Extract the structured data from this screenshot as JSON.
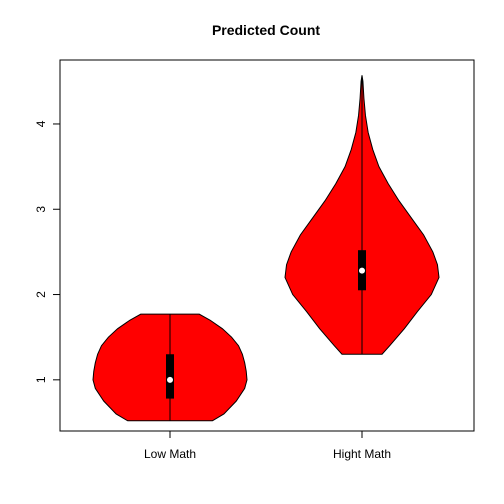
{
  "chart_data": {
    "type": "violin",
    "title": "Predicted Count",
    "xlabel": "",
    "ylabel": "",
    "categories": [
      "Low Math",
      "Hight Math"
    ],
    "ylim": [
      0.4,
      4.75
    ],
    "yticks": [
      1,
      2,
      3,
      4
    ],
    "fill_color": "#ff0000",
    "violins": [
      {
        "category": "Low Math",
        "min": 0.52,
        "q1": 0.78,
        "median": 1.0,
        "q3": 1.3,
        "max": 1.77,
        "density": [
          [
            0.52,
            0.55
          ],
          [
            0.6,
            0.7
          ],
          [
            0.75,
            0.86
          ],
          [
            0.9,
            0.97
          ],
          [
            1.0,
            1.0
          ],
          [
            1.1,
            0.99
          ],
          [
            1.2,
            0.97
          ],
          [
            1.3,
            0.94
          ],
          [
            1.4,
            0.89
          ],
          [
            1.5,
            0.8
          ],
          [
            1.6,
            0.68
          ],
          [
            1.7,
            0.52
          ],
          [
            1.77,
            0.38
          ]
        ]
      },
      {
        "category": "Hight Math",
        "min": 1.3,
        "q1": 2.05,
        "median": 2.28,
        "q3": 2.52,
        "max": 4.57,
        "density": [
          [
            1.3,
            0.26
          ],
          [
            1.4,
            0.36
          ],
          [
            1.6,
            0.55
          ],
          [
            1.8,
            0.72
          ],
          [
            2.0,
            0.9
          ],
          [
            2.2,
            1.0
          ],
          [
            2.35,
            0.98
          ],
          [
            2.5,
            0.92
          ],
          [
            2.7,
            0.8
          ],
          [
            2.9,
            0.64
          ],
          [
            3.1,
            0.48
          ],
          [
            3.3,
            0.34
          ],
          [
            3.5,
            0.22
          ],
          [
            3.7,
            0.14
          ],
          [
            3.9,
            0.08
          ],
          [
            4.1,
            0.045
          ],
          [
            4.3,
            0.025
          ],
          [
            4.5,
            0.012
          ],
          [
            4.57,
            0.0
          ]
        ]
      }
    ]
  }
}
